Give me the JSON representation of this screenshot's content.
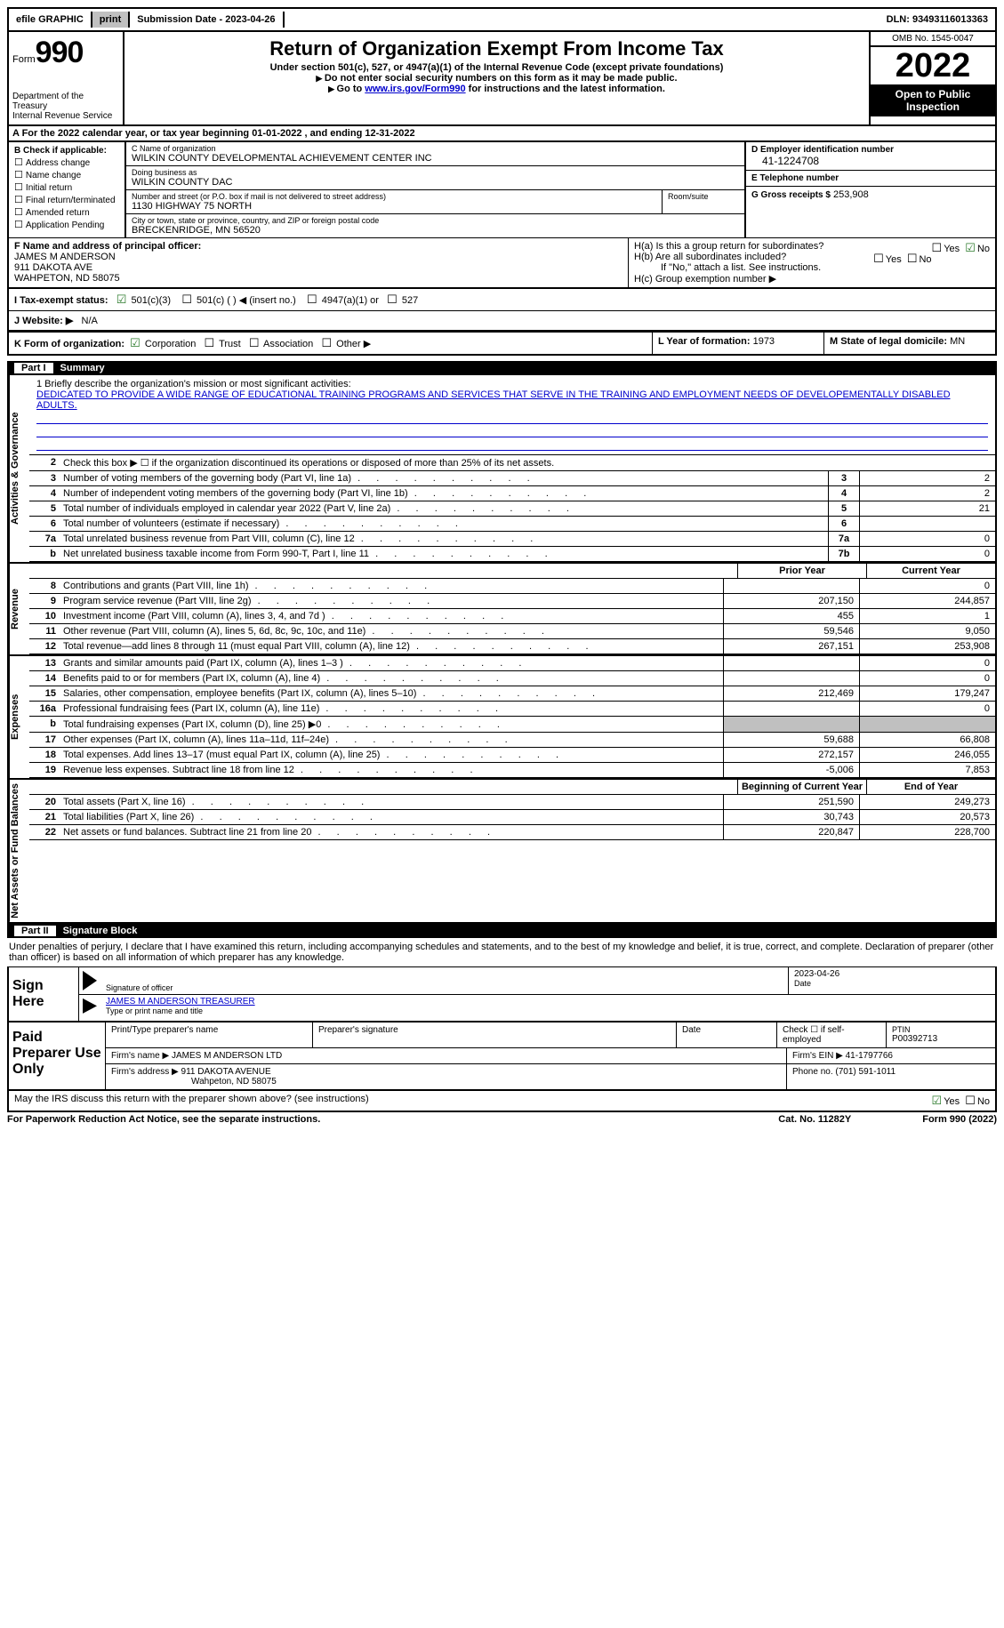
{
  "topbar": {
    "efile": "efile GRAPHIC",
    "print": "print",
    "submission": "Submission Date - 2023-04-26",
    "dln": "DLN: 93493116013363"
  },
  "header": {
    "form_label": "Form",
    "form_no": "990",
    "dept": "Department of the Treasury\nInternal Revenue Service",
    "title": "Return of Organization Exempt From Income Tax",
    "sub1": "Under section 501(c), 527, or 4947(a)(1) of the Internal Revenue Code (except private foundations)",
    "sub2": "Do not enter social security numbers on this form as it may be made public.",
    "sub3_pre": "Go to ",
    "sub3_link": "www.irs.gov/Form990",
    "sub3_post": " for instructions and the latest information.",
    "omb": "OMB No. 1545-0047",
    "year": "2022",
    "open": "Open to Public Inspection"
  },
  "row_a": "A For the 2022 calendar year, or tax year beginning 01-01-2022    , and ending 12-31-2022",
  "col_b": {
    "label": "B Check if applicable:",
    "items": [
      "Address change",
      "Name change",
      "Initial return",
      "Final return/terminated",
      "Amended return",
      "Application Pending"
    ]
  },
  "col_c": {
    "name_lbl": "C Name of organization",
    "name": "WILKIN COUNTY DEVELOPMENTAL ACHIEVEMENT CENTER INC",
    "dba_lbl": "Doing business as",
    "dba": "WILKIN COUNTY DAC",
    "street_lbl": "Number and street (or P.O. box if mail is not delivered to street address)",
    "street": "1130 HIGHWAY 75 NORTH",
    "room_lbl": "Room/suite",
    "city_lbl": "City or town, state or province, country, and ZIP or foreign postal code",
    "city": "BRECKENRIDGE, MN  56520"
  },
  "col_d": {
    "lbl": "D Employer identification number",
    "val": "41-1224708"
  },
  "col_e": {
    "lbl": "E Telephone number",
    "val": ""
  },
  "col_g": {
    "lbl": "G Gross receipts $",
    "val": "253,908"
  },
  "col_f": {
    "lbl": "F Name and address of principal officer:",
    "name": "JAMES M ANDERSON",
    "addr1": "911 DAKOTA AVE",
    "addr2": "WAHPETON, ND  58075"
  },
  "col_h": {
    "a": "H(a)  Is this a group return for subordinates?",
    "a_ans": "No",
    "b": "H(b)  Are all subordinates included?",
    "b_note": "If \"No,\" attach a list. See instructions.",
    "c": "H(c)  Group exemption number ▶"
  },
  "row_i": {
    "lbl": "I   Tax-exempt status:",
    "opts": [
      "501(c)(3)",
      "501(c) (  ) ◀ (insert no.)",
      "4947(a)(1) or",
      "527"
    ]
  },
  "row_j": {
    "lbl": "J   Website: ▶",
    "val": "N/A"
  },
  "row_k": {
    "lbl": "K Form of organization:",
    "opts": [
      "Corporation",
      "Trust",
      "Association",
      "Other ▶"
    ]
  },
  "row_l": {
    "lbl": "L Year of formation:",
    "val": "1973"
  },
  "row_m": {
    "lbl": "M State of legal domicile:",
    "val": "MN"
  },
  "part1": {
    "num": "Part I",
    "title": "Summary"
  },
  "mission": {
    "lbl": "1   Briefly describe the organization's mission or most significant activities:",
    "text": "DEDICATED TO PROVIDE A WIDE RANGE OF EDUCATIONAL TRAINING PROGRAMS AND SERVICES THAT SERVE IN THE TRAINING AND EMPLOYMENT NEEDS OF DEVELOPEMENTALLY DISABLED ADULTS."
  },
  "governance_rows": [
    {
      "n": "2",
      "d": "Check this box ▶ ☐  if the organization discontinued its operations or disposed of more than 25% of its net assets.",
      "box": "",
      "v": ""
    },
    {
      "n": "3",
      "d": "Number of voting members of the governing body (Part VI, line 1a)",
      "box": "3",
      "v": "2"
    },
    {
      "n": "4",
      "d": "Number of independent voting members of the governing body (Part VI, line 1b)",
      "box": "4",
      "v": "2"
    },
    {
      "n": "5",
      "d": "Total number of individuals employed in calendar year 2022 (Part V, line 2a)",
      "box": "5",
      "v": "21"
    },
    {
      "n": "6",
      "d": "Total number of volunteers (estimate if necessary)",
      "box": "6",
      "v": ""
    },
    {
      "n": "7a",
      "d": "Total unrelated business revenue from Part VIII, column (C), line 12",
      "box": "7a",
      "v": "0"
    },
    {
      "n": "b",
      "d": "Net unrelated business taxable income from Form 990-T, Part I, line 11",
      "box": "7b",
      "v": "0"
    }
  ],
  "col_headers": {
    "prior": "Prior Year",
    "current": "Current Year",
    "boy": "Beginning of Current Year",
    "eoy": "End of Year"
  },
  "revenue_rows": [
    {
      "n": "8",
      "d": "Contributions and grants (Part VIII, line 1h)",
      "p": "",
      "c": "0"
    },
    {
      "n": "9",
      "d": "Program service revenue (Part VIII, line 2g)",
      "p": "207,150",
      "c": "244,857"
    },
    {
      "n": "10",
      "d": "Investment income (Part VIII, column (A), lines 3, 4, and 7d )",
      "p": "455",
      "c": "1"
    },
    {
      "n": "11",
      "d": "Other revenue (Part VIII, column (A), lines 5, 6d, 8c, 9c, 10c, and 11e)",
      "p": "59,546",
      "c": "9,050"
    },
    {
      "n": "12",
      "d": "Total revenue—add lines 8 through 11 (must equal Part VIII, column (A), line 12)",
      "p": "267,151",
      "c": "253,908"
    }
  ],
  "expense_rows": [
    {
      "n": "13",
      "d": "Grants and similar amounts paid (Part IX, column (A), lines 1–3 )",
      "p": "",
      "c": "0"
    },
    {
      "n": "14",
      "d": "Benefits paid to or for members (Part IX, column (A), line 4)",
      "p": "",
      "c": "0"
    },
    {
      "n": "15",
      "d": "Salaries, other compensation, employee benefits (Part IX, column (A), lines 5–10)",
      "p": "212,469",
      "c": "179,247"
    },
    {
      "n": "16a",
      "d": "Professional fundraising fees (Part IX, column (A), line 11e)",
      "p": "",
      "c": "0"
    },
    {
      "n": "b",
      "d": "Total fundraising expenses (Part IX, column (D), line 25) ▶0",
      "p": "shaded",
      "c": "shaded"
    },
    {
      "n": "17",
      "d": "Other expenses (Part IX, column (A), lines 11a–11d, 11f–24e)",
      "p": "59,688",
      "c": "66,808"
    },
    {
      "n": "18",
      "d": "Total expenses. Add lines 13–17 (must equal Part IX, column (A), line 25)",
      "p": "272,157",
      "c": "246,055"
    },
    {
      "n": "19",
      "d": "Revenue less expenses. Subtract line 18 from line 12",
      "p": "-5,006",
      "c": "7,853"
    }
  ],
  "netasset_rows": [
    {
      "n": "20",
      "d": "Total assets (Part X, line 16)",
      "p": "251,590",
      "c": "249,273"
    },
    {
      "n": "21",
      "d": "Total liabilities (Part X, line 26)",
      "p": "30,743",
      "c": "20,573"
    },
    {
      "n": "22",
      "d": "Net assets or fund balances. Subtract line 21 from line 20",
      "p": "220,847",
      "c": "228,700"
    }
  ],
  "sidebars": {
    "gov": "Activities & Governance",
    "rev": "Revenue",
    "exp": "Expenses",
    "net": "Net Assets or Fund Balances"
  },
  "part2": {
    "num": "Part II",
    "title": "Signature Block"
  },
  "sig_intro": "Under penalties of perjury, I declare that I have examined this return, including accompanying schedules and statements, and to the best of my knowledge and belief, it is true, correct, and complete. Declaration of preparer (other than officer) is based on all information of which preparer has any knowledge.",
  "sign": {
    "left": "Sign Here",
    "sig_lbl": "Signature of officer",
    "date": "2023-04-26",
    "date_lbl": "Date",
    "name": "JAMES M ANDERSON  TREASURER",
    "name_lbl": "Type or print name and title"
  },
  "prep": {
    "left": "Paid Preparer Use Only",
    "r1": {
      "a": "Print/Type preparer's name",
      "b": "Preparer's signature",
      "c": "Date",
      "d": "Check ☐ if self-employed",
      "e_lbl": "PTIN",
      "e": "P00392713"
    },
    "r2": {
      "a": "Firm's name    ▶",
      "b": "JAMES M ANDERSON LTD",
      "c": "Firm's EIN ▶",
      "d": "41-1797766"
    },
    "r3": {
      "a": "Firm's address ▶",
      "b": "911 DAKOTA AVENUE",
      "b2": "Wahpeton, ND  58075",
      "c": "Phone no.",
      "d": "(701) 591-1011"
    }
  },
  "discuss": "May the IRS discuss this return with the preparer shown above? (see instructions)",
  "footer": {
    "l": "For Paperwork Reduction Act Notice, see the separate instructions.",
    "c": "Cat. No. 11282Y",
    "r": "Form 990 (2022)"
  }
}
